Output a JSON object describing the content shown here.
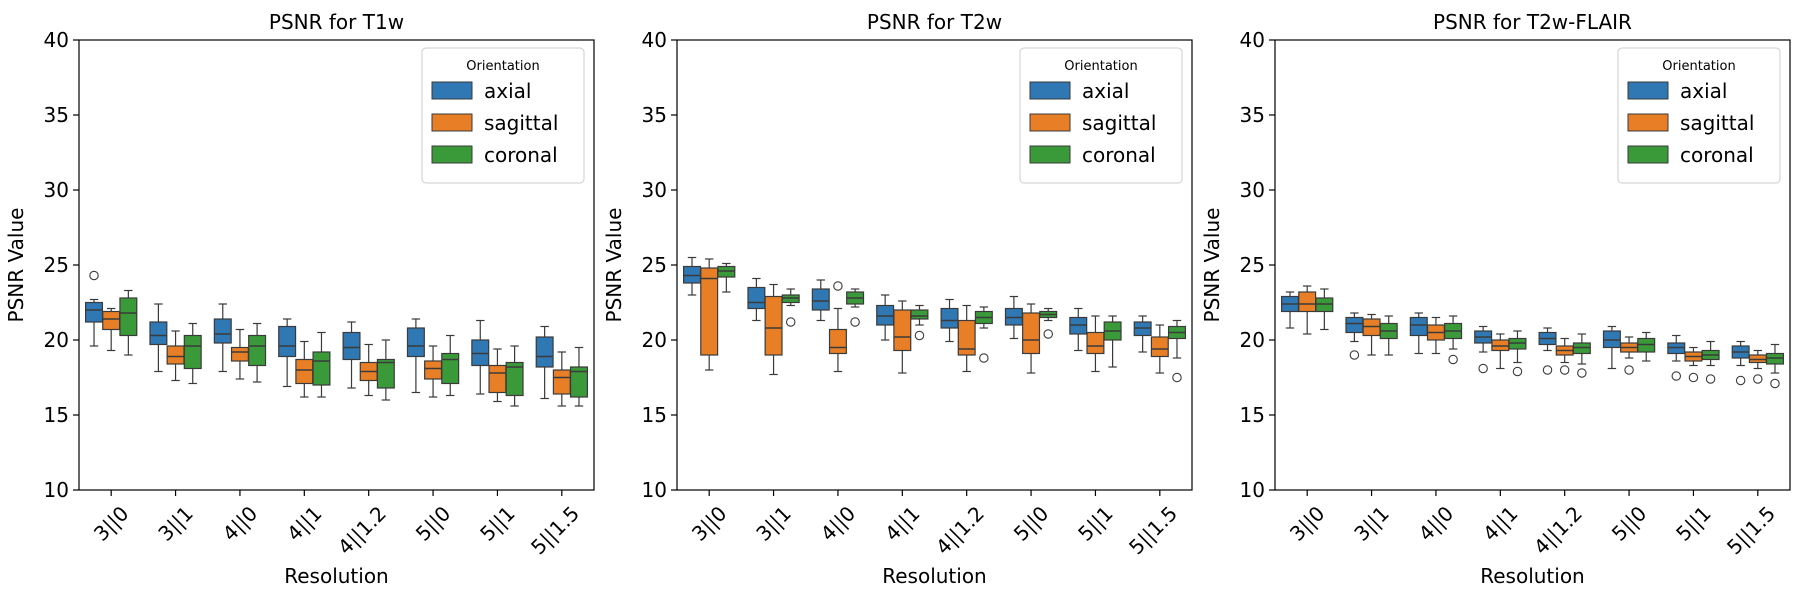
{
  "colors": {
    "axial": "#2f78b4",
    "sagittal": "#e87f26",
    "coronal": "#3a9a3a",
    "edge": "#3a3a3a",
    "axis": "#000000"
  },
  "chart_data": [
    {
      "type": "box",
      "title": "PSNR for T1w",
      "xlabel": "Resolution",
      "ylabel": "PSNR Value",
      "ylim": [
        10,
        40
      ],
      "yticks": [
        "10",
        "15",
        "20",
        "25",
        "30",
        "35",
        "40"
      ],
      "categories": [
        "3||0",
        "3||1",
        "4||0",
        "4||1",
        "4||1.2",
        "5||0",
        "5||1",
        "5||1.5"
      ],
      "legend": {
        "title": "Orientation",
        "placement": "top-right",
        "labels": [
          "axial",
          "sagittal",
          "coronal"
        ]
      },
      "series": [
        {
          "name": "axial",
          "boxes": [
            {
              "whislo": 19.6,
              "q1": 21.2,
              "med": 22.0,
              "q3": 22.5,
              "whishi": 22.7,
              "fliers": [
                24.3
              ]
            },
            {
              "whislo": 17.9,
              "q1": 19.7,
              "med": 20.3,
              "q3": 21.2,
              "whishi": 22.4,
              "fliers": []
            },
            {
              "whislo": 17.9,
              "q1": 19.8,
              "med": 20.4,
              "q3": 21.4,
              "whishi": 22.4,
              "fliers": []
            },
            {
              "whislo": 16.9,
              "q1": 18.9,
              "med": 19.6,
              "q3": 20.9,
              "whishi": 21.4,
              "fliers": []
            },
            {
              "whislo": 16.8,
              "q1": 18.7,
              "med": 19.5,
              "q3": 20.5,
              "whishi": 21.2,
              "fliers": []
            },
            {
              "whislo": 16.5,
              "q1": 18.9,
              "med": 19.6,
              "q3": 20.8,
              "whishi": 21.4,
              "fliers": []
            },
            {
              "whislo": 16.4,
              "q1": 18.3,
              "med": 19.1,
              "q3": 20.0,
              "whishi": 21.3,
              "fliers": []
            },
            {
              "whislo": 16.1,
              "q1": 18.2,
              "med": 18.9,
              "q3": 20.2,
              "whishi": 20.9,
              "fliers": []
            }
          ]
        },
        {
          "name": "sagittal",
          "boxes": [
            {
              "whislo": 19.3,
              "q1": 20.7,
              "med": 21.4,
              "q3": 21.9,
              "whishi": 22.1,
              "fliers": []
            },
            {
              "whislo": 17.3,
              "q1": 18.4,
              "med": 18.9,
              "q3": 19.6,
              "whishi": 20.6,
              "fliers": []
            },
            {
              "whislo": 17.4,
              "q1": 18.6,
              "med": 19.2,
              "q3": 19.5,
              "whishi": 20.7,
              "fliers": []
            },
            {
              "whislo": 16.2,
              "q1": 17.1,
              "med": 18.0,
              "q3": 18.7,
              "whishi": 19.9,
              "fliers": []
            },
            {
              "whislo": 16.3,
              "q1": 17.3,
              "med": 17.9,
              "q3": 18.5,
              "whishi": 19.7,
              "fliers": []
            },
            {
              "whislo": 16.2,
              "q1": 17.4,
              "med": 18.1,
              "q3": 18.6,
              "whishi": 19.6,
              "fliers": []
            },
            {
              "whislo": 15.9,
              "q1": 16.5,
              "med": 17.8,
              "q3": 18.3,
              "whishi": 19.4,
              "fliers": []
            },
            {
              "whislo": 15.6,
              "q1": 16.4,
              "med": 17.5,
              "q3": 18.0,
              "whishi": 19.2,
              "fliers": []
            }
          ]
        },
        {
          "name": "coronal",
          "boxes": [
            {
              "whislo": 19.0,
              "q1": 20.3,
              "med": 21.8,
              "q3": 22.8,
              "whishi": 23.3,
              "fliers": []
            },
            {
              "whislo": 17.1,
              "q1": 18.1,
              "med": 19.6,
              "q3": 20.3,
              "whishi": 21.1,
              "fliers": []
            },
            {
              "whislo": 17.2,
              "q1": 18.3,
              "med": 19.6,
              "q3": 20.3,
              "whishi": 21.1,
              "fliers": []
            },
            {
              "whislo": 16.2,
              "q1": 17.0,
              "med": 18.6,
              "q3": 19.2,
              "whishi": 20.5,
              "fliers": []
            },
            {
              "whislo": 16.0,
              "q1": 16.8,
              "med": 18.5,
              "q3": 18.7,
              "whishi": 20.0,
              "fliers": []
            },
            {
              "whislo": 16.3,
              "q1": 17.1,
              "med": 18.7,
              "q3": 19.1,
              "whishi": 20.3,
              "fliers": []
            },
            {
              "whislo": 15.6,
              "q1": 16.3,
              "med": 18.2,
              "q3": 18.5,
              "whishi": 19.6,
              "fliers": []
            },
            {
              "whislo": 15.6,
              "q1": 16.2,
              "med": 17.9,
              "q3": 18.2,
              "whishi": 19.5,
              "fliers": []
            }
          ]
        }
      ]
    },
    {
      "type": "box",
      "title": "PSNR for T2w",
      "xlabel": "Resolution",
      "ylabel": "PSNR Value",
      "ylim": [
        10,
        40
      ],
      "yticks": [
        "10",
        "15",
        "20",
        "25",
        "30",
        "35",
        "40"
      ],
      "categories": [
        "3||0",
        "3||1",
        "4||0",
        "4||1",
        "4||1.2",
        "5||0",
        "5||1",
        "5||1.5"
      ],
      "legend": {
        "title": "Orientation",
        "placement": "top-right",
        "labels": [
          "axial",
          "sagittal",
          "coronal"
        ]
      },
      "series": [
        {
          "name": "axial",
          "boxes": [
            {
              "whislo": 23.0,
              "q1": 23.8,
              "med": 24.3,
              "q3": 24.9,
              "whishi": 25.5,
              "fliers": []
            },
            {
              "whislo": 21.3,
              "q1": 22.1,
              "med": 22.5,
              "q3": 23.5,
              "whishi": 24.1,
              "fliers": []
            },
            {
              "whislo": 21.3,
              "q1": 22.0,
              "med": 22.6,
              "q3": 23.4,
              "whishi": 24.0,
              "fliers": []
            },
            {
              "whislo": 20.0,
              "q1": 21.0,
              "med": 21.6,
              "q3": 22.3,
              "whishi": 23.0,
              "fliers": []
            },
            {
              "whislo": 19.9,
              "q1": 20.8,
              "med": 21.3,
              "q3": 22.1,
              "whishi": 22.7,
              "fliers": []
            },
            {
              "whislo": 20.1,
              "q1": 21.0,
              "med": 21.5,
              "q3": 22.1,
              "whishi": 22.9,
              "fliers": []
            },
            {
              "whislo": 19.3,
              "q1": 20.4,
              "med": 21.0,
              "q3": 21.5,
              "whishi": 22.1,
              "fliers": []
            },
            {
              "whislo": 19.2,
              "q1": 20.3,
              "med": 20.8,
              "q3": 21.2,
              "whishi": 21.6,
              "fliers": []
            }
          ]
        },
        {
          "name": "sagittal",
          "boxes": [
            {
              "whislo": 18.0,
              "q1": 19.0,
              "med": 24.1,
              "q3": 24.8,
              "whishi": 25.4,
              "fliers": []
            },
            {
              "whislo": 17.7,
              "q1": 19.0,
              "med": 20.8,
              "q3": 22.9,
              "whishi": 23.7,
              "fliers": []
            },
            {
              "whislo": 17.9,
              "q1": 19.1,
              "med": 19.5,
              "q3": 20.7,
              "whishi": 22.1,
              "fliers": [
                23.6
              ]
            },
            {
              "whislo": 17.8,
              "q1": 19.3,
              "med": 20.2,
              "q3": 22.0,
              "whishi": 22.6,
              "fliers": []
            },
            {
              "whislo": 17.9,
              "q1": 19.0,
              "med": 19.4,
              "q3": 21.3,
              "whishi": 22.3,
              "fliers": []
            },
            {
              "whislo": 17.8,
              "q1": 19.1,
              "med": 20.0,
              "q3": 21.8,
              "whishi": 22.4,
              "fliers": []
            },
            {
              "whislo": 17.9,
              "q1": 19.1,
              "med": 19.6,
              "q3": 20.5,
              "whishi": 21.6,
              "fliers": []
            },
            {
              "whislo": 17.8,
              "q1": 18.9,
              "med": 19.4,
              "q3": 20.2,
              "whishi": 21.0,
              "fliers": []
            }
          ]
        },
        {
          "name": "coronal",
          "boxes": [
            {
              "whislo": 23.2,
              "q1": 24.2,
              "med": 24.6,
              "q3": 24.9,
              "whishi": 25.1,
              "fliers": []
            },
            {
              "whislo": 22.3,
              "q1": 22.5,
              "med": 22.8,
              "q3": 23.0,
              "whishi": 23.4,
              "fliers": [
                21.2
              ]
            },
            {
              "whislo": 22.2,
              "q1": 22.4,
              "med": 22.8,
              "q3": 23.2,
              "whishi": 23.4,
              "fliers": [
                21.2
              ]
            },
            {
              "whislo": 21.0,
              "q1": 21.4,
              "med": 21.6,
              "q3": 22.0,
              "whishi": 22.3,
              "fliers": [
                20.3
              ]
            },
            {
              "whislo": 20.8,
              "q1": 21.1,
              "med": 21.5,
              "q3": 21.9,
              "whishi": 22.2,
              "fliers": [
                18.8
              ]
            },
            {
              "whislo": 21.3,
              "q1": 21.5,
              "med": 21.7,
              "q3": 21.9,
              "whishi": 22.1,
              "fliers": [
                20.4
              ]
            },
            {
              "whislo": 18.2,
              "q1": 20.0,
              "med": 20.6,
              "q3": 21.2,
              "whishi": 21.6,
              "fliers": []
            },
            {
              "whislo": 18.8,
              "q1": 20.1,
              "med": 20.5,
              "q3": 20.9,
              "whishi": 21.3,
              "fliers": [
                17.5
              ]
            }
          ]
        }
      ]
    },
    {
      "type": "box",
      "title": "PSNR for T2w-FLAIR",
      "xlabel": "Resolution",
      "ylabel": "PSNR Value",
      "ylim": [
        10,
        40
      ],
      "yticks": [
        "10",
        "15",
        "20",
        "25",
        "30",
        "35",
        "40"
      ],
      "categories": [
        "3||0",
        "3||1",
        "4||0",
        "4||1",
        "4||1.2",
        "5||0",
        "5||1",
        "5||1.5"
      ],
      "legend": {
        "title": "Orientation",
        "placement": "top-right",
        "labels": [
          "axial",
          "sagittal",
          "coronal"
        ]
      },
      "series": [
        {
          "name": "axial",
          "boxes": [
            {
              "whislo": 20.8,
              "q1": 21.9,
              "med": 22.4,
              "q3": 22.9,
              "whishi": 23.2,
              "fliers": []
            },
            {
              "whislo": 19.9,
              "q1": 20.5,
              "med": 21.1,
              "q3": 21.5,
              "whishi": 21.8,
              "fliers": [
                19.0
              ]
            },
            {
              "whislo": 19.1,
              "q1": 20.3,
              "med": 21.0,
              "q3": 21.5,
              "whishi": 21.8,
              "fliers": []
            },
            {
              "whislo": 19.2,
              "q1": 19.8,
              "med": 20.2,
              "q3": 20.6,
              "whishi": 20.9,
              "fliers": [
                18.1
              ]
            },
            {
              "whislo": 19.3,
              "q1": 19.7,
              "med": 20.1,
              "q3": 20.5,
              "whishi": 20.8,
              "fliers": [
                18.0
              ]
            },
            {
              "whislo": 18.1,
              "q1": 19.5,
              "med": 20.0,
              "q3": 20.6,
              "whishi": 20.9,
              "fliers": []
            },
            {
              "whislo": 18.6,
              "q1": 19.1,
              "med": 19.5,
              "q3": 19.8,
              "whishi": 20.3,
              "fliers": [
                17.6
              ]
            },
            {
              "whislo": 18.3,
              "q1": 18.8,
              "med": 19.2,
              "q3": 19.6,
              "whishi": 19.9,
              "fliers": [
                17.3
              ]
            }
          ]
        },
        {
          "name": "sagittal",
          "boxes": [
            {
              "whislo": 20.4,
              "q1": 21.9,
              "med": 22.4,
              "q3": 23.2,
              "whishi": 23.6,
              "fliers": []
            },
            {
              "whislo": 19.0,
              "q1": 20.3,
              "med": 20.9,
              "q3": 21.4,
              "whishi": 21.7,
              "fliers": []
            },
            {
              "whislo": 19.1,
              "q1": 20.0,
              "med": 20.5,
              "q3": 21.0,
              "whishi": 21.5,
              "fliers": []
            },
            {
              "whislo": 18.1,
              "q1": 19.3,
              "med": 19.6,
              "q3": 20.0,
              "whishi": 20.4,
              "fliers": []
            },
            {
              "whislo": 18.5,
              "q1": 19.0,
              "med": 19.3,
              "q3": 19.6,
              "whishi": 20.1,
              "fliers": [
                18.0
              ]
            },
            {
              "whislo": 18.8,
              "q1": 19.2,
              "med": 19.5,
              "q3": 19.8,
              "whishi": 20.2,
              "fliers": [
                18.0
              ]
            },
            {
              "whislo": 18.3,
              "q1": 18.6,
              "med": 18.9,
              "q3": 19.2,
              "whishi": 19.5,
              "fliers": [
                17.5
              ]
            },
            {
              "whislo": 18.1,
              "q1": 18.5,
              "med": 18.7,
              "q3": 19.0,
              "whishi": 19.3,
              "fliers": [
                17.4
              ]
            }
          ]
        },
        {
          "name": "coronal",
          "boxes": [
            {
              "whislo": 20.7,
              "q1": 21.9,
              "med": 22.4,
              "q3": 22.8,
              "whishi": 23.4,
              "fliers": []
            },
            {
              "whislo": 19.0,
              "q1": 20.1,
              "med": 20.6,
              "q3": 21.1,
              "whishi": 21.6,
              "fliers": []
            },
            {
              "whislo": 19.4,
              "q1": 20.1,
              "med": 20.6,
              "q3": 21.1,
              "whishi": 21.6,
              "fliers": [
                18.7
              ]
            },
            {
              "whislo": 18.5,
              "q1": 19.4,
              "med": 19.8,
              "q3": 20.1,
              "whishi": 20.6,
              "fliers": [
                17.9
              ]
            },
            {
              "whislo": 18.4,
              "q1": 19.1,
              "med": 19.5,
              "q3": 19.8,
              "whishi": 20.4,
              "fliers": [
                17.8
              ]
            },
            {
              "whislo": 18.6,
              "q1": 19.2,
              "med": 19.7,
              "q3": 20.1,
              "whishi": 20.5,
              "fliers": []
            },
            {
              "whislo": 18.3,
              "q1": 18.7,
              "med": 19.0,
              "q3": 19.3,
              "whishi": 19.9,
              "fliers": [
                17.4
              ]
            },
            {
              "whislo": 17.8,
              "q1": 18.4,
              "med": 18.8,
              "q3": 19.1,
              "whishi": 19.7,
              "fliers": [
                17.1
              ]
            }
          ]
        }
      ]
    }
  ]
}
